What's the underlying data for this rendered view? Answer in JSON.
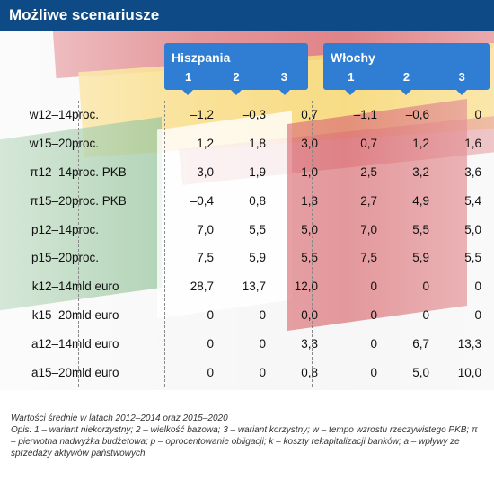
{
  "title": "Możliwe scenariusze",
  "groups": [
    {
      "name": "Hiszpania",
      "variants": [
        "1",
        "2",
        "3"
      ]
    },
    {
      "name": "Włochy",
      "variants": [
        "1",
        "2",
        "3"
      ]
    }
  ],
  "rows": [
    {
      "label": "w12–14",
      "unit": "proc.",
      "es": [
        "–1,2",
        "–0,3",
        "0,7"
      ],
      "it": [
        "–1,1",
        "–0,6",
        "0"
      ]
    },
    {
      "label": "w15–20",
      "unit": "proc.",
      "es": [
        "1,2",
        "1,8",
        "3,0"
      ],
      "it": [
        "0,7",
        "1,2",
        "1,6"
      ]
    },
    {
      "label": "π12–14",
      "unit": "proc. PKB",
      "es": [
        "–3,0",
        "–1,9",
        "–1,0"
      ],
      "it": [
        "2,5",
        "3,2",
        "3,6"
      ]
    },
    {
      "label": "π15–20",
      "unit": "proc. PKB",
      "es": [
        "–0,4",
        "0,8",
        "1,3"
      ],
      "it": [
        "2,7",
        "4,9",
        "5,4"
      ]
    },
    {
      "label": "p12–14",
      "unit": "proc.",
      "es": [
        "7,0",
        "5,5",
        "5,0"
      ],
      "it": [
        "7,0",
        "5,5",
        "5,0"
      ]
    },
    {
      "label": "p15–20",
      "unit": "proc.",
      "es": [
        "7,5",
        "5,9",
        "5,5"
      ],
      "it": [
        "7,5",
        "5,9",
        "5,5"
      ]
    },
    {
      "label": "k12–14",
      "unit": "mld euro",
      "es": [
        "28,7",
        "13,7",
        "12,0"
      ],
      "it": [
        "0",
        "0",
        "0"
      ]
    },
    {
      "label": "k15–20",
      "unit": "mld euro",
      "es": [
        "0",
        "0",
        "0,0"
      ],
      "it": [
        "0",
        "0",
        "0"
      ]
    },
    {
      "label": "a12–14",
      "unit": "mld euro",
      "es": [
        "0",
        "0",
        "3,3"
      ],
      "it": [
        "0",
        "6,7",
        "13,3"
      ]
    },
    {
      "label": "a15–20",
      "unit": "mld euro",
      "es": [
        "0",
        "0",
        "0,8"
      ],
      "it": [
        "0",
        "5,0",
        "10,0"
      ]
    }
  ],
  "footnote": {
    "line1": "Wartości średnie w latach 2012–2014 oraz 2015–2020",
    "line2": "Opis: 1 – wariant niekorzystny; 2 – wielkość bazowa; 3 – wariant korzystny; w – tempo wzrostu rzeczywistego PKB; π – pierwotna nadwyżka budżetowa; p – oprocentowanie obligacji; k – koszty rekapitalizacji banków; a – wpływy ze sprzedaży aktywów państwowych"
  },
  "colors": {
    "title_bg": "#0d4a86",
    "header_bg": "#2f7ed3",
    "spain_red": "#c8232c",
    "spain_yellow": "#f4c430",
    "italy_green": "#2e8b3a",
    "italy_red": "#c8232c"
  }
}
